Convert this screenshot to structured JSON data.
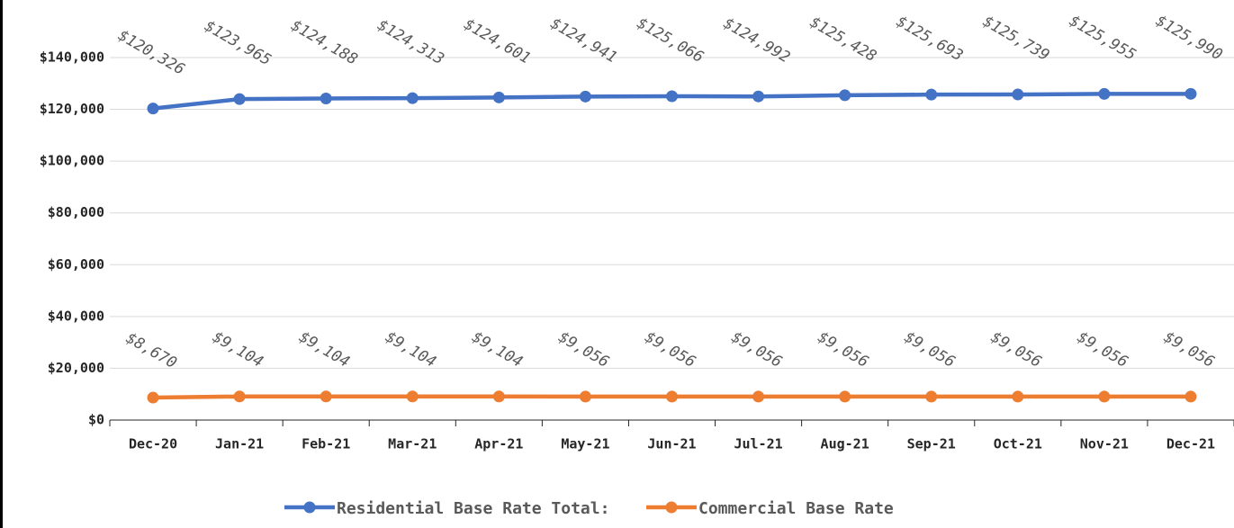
{
  "chart_data": {
    "type": "line",
    "categories": [
      "Dec-20",
      "Jan-21",
      "Feb-21",
      "Mar-21",
      "Apr-21",
      "May-21",
      "Jun-21",
      "Jul-21",
      "Aug-21",
      "Sep-21",
      "Oct-21",
      "Nov-21",
      "Dec-21"
    ],
    "series": [
      {
        "name": "Residential Base Rate Total:",
        "color": "#4472c4",
        "values": [
          120326,
          123965,
          124188,
          124313,
          124601,
          124941,
          125066,
          124992,
          125428,
          125693,
          125739,
          125955,
          125990
        ],
        "value_labels": [
          "$120,326",
          "$123,965",
          "$124,188",
          "$124,313",
          "$124,601",
          "$124,941",
          "$125,066",
          "$124,992",
          "$125,428",
          "$125,693",
          "$125,739",
          "$125,955",
          "$125,990"
        ]
      },
      {
        "name": "Commercial Base Rate",
        "color": "#ed7d31",
        "values": [
          8670,
          9104,
          9104,
          9104,
          9104,
          9056,
          9056,
          9056,
          9056,
          9056,
          9056,
          9056,
          9056
        ],
        "value_labels": [
          "$8,670",
          "$9,104",
          "$9,104",
          "$9,104",
          "$9,104",
          "$9,056",
          "$9,056",
          "$9,056",
          "$9,056",
          "$9,056",
          "$9,056",
          "$9,056",
          "$9,056"
        ]
      }
    ],
    "ylim": [
      0,
      150000
    ],
    "yticks": [
      {
        "value": 0,
        "label": "$0"
      },
      {
        "value": 20000,
        "label": "$20,000"
      },
      {
        "value": 40000,
        "label": "$40,000"
      },
      {
        "value": 60000,
        "label": "$60,000"
      },
      {
        "value": 80000,
        "label": "$80,000"
      },
      {
        "value": 100000,
        "label": "$100,000"
      },
      {
        "value": 120000,
        "label": "$120,000"
      },
      {
        "value": 140000,
        "label": "$140,000"
      }
    ],
    "grid": true,
    "legend": "bottom"
  }
}
